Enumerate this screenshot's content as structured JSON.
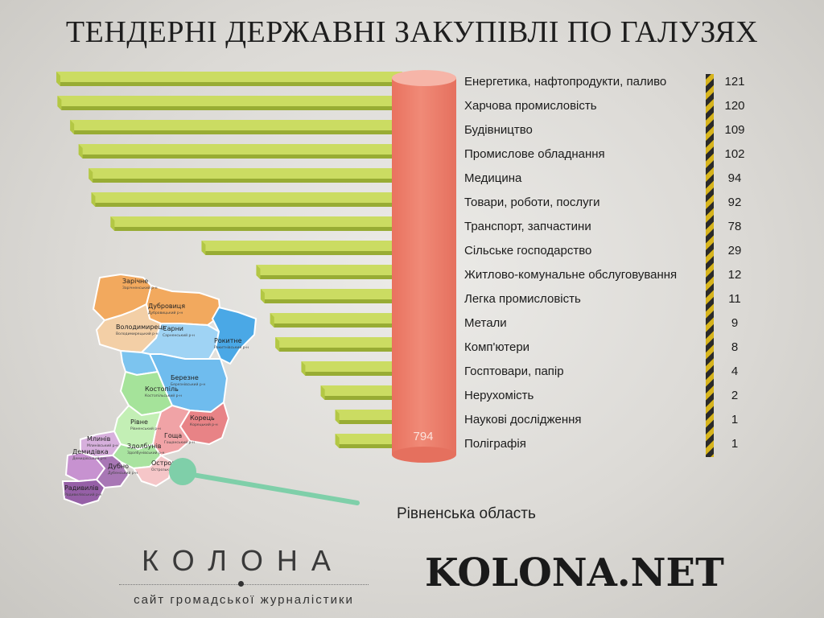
{
  "title": "ТЕНДЕРНІ ДЕРЖАВНІ ЗАКУПІВЛІ ПО ГАЛУЗЯХ",
  "chart_data": {
    "type": "bar",
    "orientation": "horizontal",
    "categories": [
      "Енергетика, нафтопродукти, паливо",
      "Харчова промисловість",
      "Будівництво",
      "Промислове обладнання",
      "Медицина",
      "Товари, роботи, послуги",
      "Транспорт, запчастини",
      "Сільське господарство",
      "Житлово-комунальне обслуговування",
      "Легка промисловість",
      "Метали",
      "Комп'ютери",
      "Госптовари, папір",
      "Нерухомість",
      "Наукові дослідження",
      "Поліграфія"
    ],
    "values": [
      121,
      120,
      109,
      102,
      94,
      92,
      78,
      29,
      12,
      11,
      9,
      8,
      4,
      2,
      1,
      1
    ],
    "total": "794",
    "colors": {
      "bar": "#cbdc62",
      "bar_shadow": "#98ac34",
      "cylinder": "#ee7e6b",
      "cylinder_top": "#f6b5a8",
      "stripe_dark": "#2a2a2a",
      "stripe_light": "#d7b41c"
    }
  },
  "map": {
    "region_label": "Рівненська область",
    "districts": [
      {
        "name": "Зарічне",
        "sub": "Зарічненський р-н",
        "color": "#f2a95e"
      },
      {
        "name": "Дубровиця",
        "sub": "Дубровицький р-н",
        "color": "#f2a95e"
      },
      {
        "name": "Володимирець",
        "sub": "Володимирецький р-н",
        "color": "#f3cfa6"
      },
      {
        "name": "Сарни",
        "sub": "Сарненський р-н",
        "color": "#9fd3f4"
      },
      {
        "name": "Рокитне",
        "sub": "Рокитнівський р-н",
        "color": "#4aa8e6"
      },
      {
        "name": "Березне",
        "sub": "Березнівський р-н",
        "color": "#6fbcee"
      },
      {
        "name": "Костопіль",
        "sub": "Костопільський р-н",
        "color": "#a5e39a"
      },
      {
        "name": "Рівне",
        "sub": "Рівненський р-н",
        "color": "#c3efb5"
      },
      {
        "name": "Корець",
        "sub": "Корецький р-н",
        "color": "#e88386"
      },
      {
        "name": "Гоща",
        "sub": "Гощанський р-н",
        "color": "#f0a3a6"
      },
      {
        "name": "Млинів",
        "sub": "Млинівський р-н",
        "color": "#d7b0dd"
      },
      {
        "name": "Здолбунів",
        "sub": "Здолбунівський р-н",
        "color": "#a9e3a0"
      },
      {
        "name": "Демидівка",
        "sub": "Демидівський р-н",
        "color": "#c792d0"
      },
      {
        "name": "Дубно",
        "sub": "Дубенський р-н",
        "color": "#a877b5"
      },
      {
        "name": "Острог",
        "sub": "Острозький р-н",
        "color": "#f5c6c8"
      },
      {
        "name": "Радивилів",
        "sub": "Радивилівський р-н",
        "color": "#9660a7"
      }
    ]
  },
  "brand": {
    "name": "КОЛОНА",
    "subtitle": "сайт громадської журналістики",
    "site": "KOLONA.NET"
  }
}
